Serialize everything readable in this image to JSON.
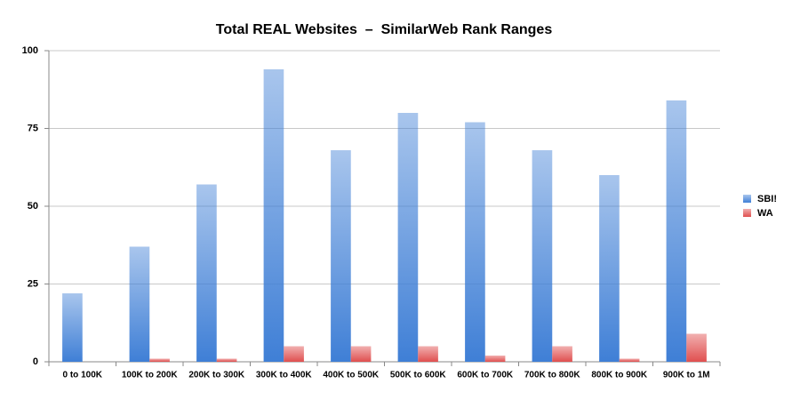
{
  "chart_data": {
    "type": "bar",
    "title": "Total REAL Websites  –  SimilarWeb Rank Ranges",
    "categories": [
      "0 to 100K",
      "100K to 200K",
      "200K to 300K",
      "300K to 400K",
      "400K to 500K",
      "500K to 600K",
      "600K to 700K",
      "700K to 800K",
      "800K to 900K",
      "900K to 1M"
    ],
    "series": [
      {
        "name": "SBI!",
        "color": "#3f7fd6",
        "values": [
          22,
          37,
          57,
          94,
          68,
          80,
          77,
          68,
          60,
          84
        ]
      },
      {
        "name": "WA",
        "color": "#e04f4f",
        "values": [
          0,
          1,
          1,
          5,
          5,
          5,
          2,
          5,
          1,
          9
        ]
      }
    ],
    "ylim": [
      0,
      100
    ],
    "yticks": [
      0,
      25,
      50,
      75,
      100
    ],
    "grid": true,
    "legend": "right"
  }
}
